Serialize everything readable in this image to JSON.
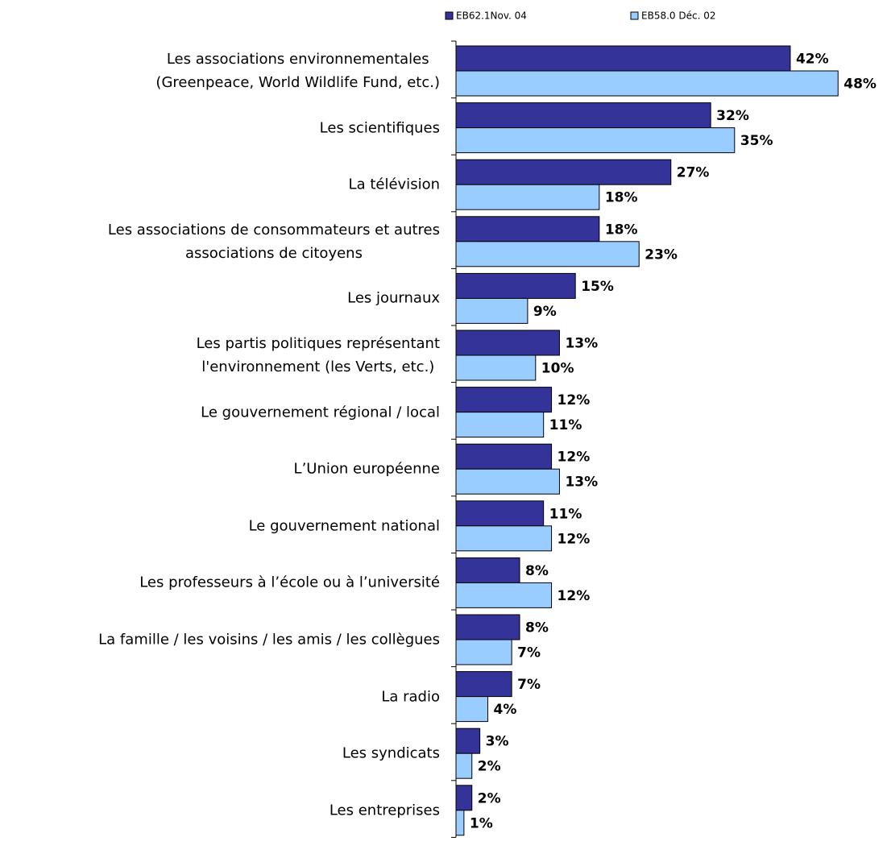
{
  "chart_data": {
    "type": "bar",
    "orientation": "horizontal",
    "categories": [
      "Les associations environnementales\n(Greenpeace, World Wildlife Fund, etc.)",
      "Les scientifiques",
      "La télévision",
      "Les associations de consommateurs et autres\nassociations de citoyens",
      "Les journaux",
      "Les partis politiques représentant\nl'environnement (les Verts, etc.)",
      "Le gouvernement régional / local",
      "L’Union européenne",
      "Le gouvernement national",
      "Les professeurs à l’école ou à l’université",
      "La famille / les voisins / les amis / les collègues",
      "La radio",
      "Les syndicats",
      "Les entreprises"
    ],
    "series": [
      {
        "name": "EB62.1Nov. 04",
        "color": "#333399",
        "values": [
          42,
          32,
          27,
          18,
          15,
          13,
          12,
          12,
          11,
          8,
          8,
          7,
          3,
          2
        ],
        "value_labels": [
          "42%",
          "32%",
          "27%",
          "18%",
          "15%",
          "13%",
          "12%",
          "12%",
          "11%",
          "8%",
          "8%",
          "7%",
          "3%",
          "2%"
        ]
      },
      {
        "name": "EB58.0 Déc. 02",
        "color": "#99ccff",
        "values": [
          48,
          35,
          18,
          23,
          9,
          10,
          11,
          13,
          12,
          12,
          7,
          4,
          2,
          1
        ],
        "value_labels": [
          "48%",
          "35%",
          "18%",
          "23%",
          "9%",
          "10%",
          "11%",
          "13%",
          "12%",
          "12%",
          "7%",
          "4%",
          "2%",
          "1%"
        ]
      }
    ],
    "xlim": [
      0,
      50
    ],
    "legend": "top"
  }
}
